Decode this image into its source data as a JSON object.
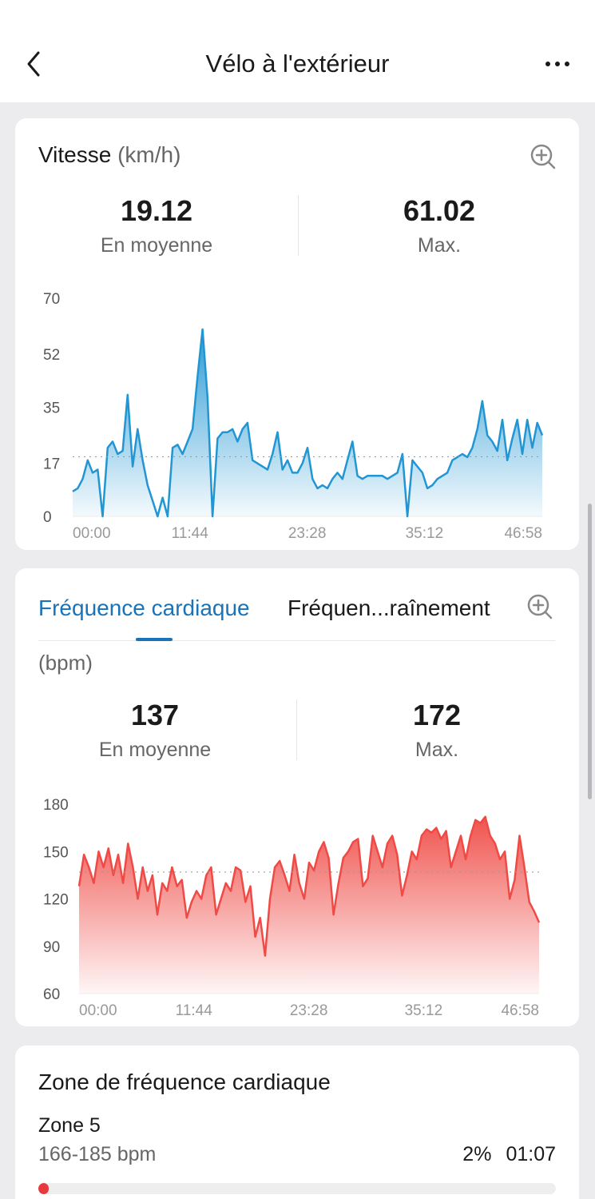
{
  "header": {
    "title": "Vélo à l'extérieur",
    "back_icon": "chevron-left-icon",
    "more_icon": "more-horizontal-icon"
  },
  "speed": {
    "title": "Vitesse",
    "unit": "(km/h)",
    "zoom_icon": "zoom-in-icon",
    "stats": [
      {
        "value": "19.12",
        "label": "En moyenne"
      },
      {
        "value": "61.02",
        "label": "Max."
      }
    ],
    "color": "#2196d3"
  },
  "heart_rate": {
    "tabs": [
      {
        "label": "Fréquence cardiaque",
        "active": true
      },
      {
        "label": "Fréquen...raînement",
        "active": false
      }
    ],
    "zoom_icon": "zoom-in-icon",
    "unit": "(bpm)",
    "stats": [
      {
        "value": "137",
        "label": "En moyenne"
      },
      {
        "value": "172",
        "label": "Max."
      }
    ],
    "color": "#ef4a45"
  },
  "zone": {
    "title": "Zone de fréquence cardiaque",
    "name": "Zone 5",
    "range": "166-185 bpm",
    "percent": "2%",
    "duration": "01:07",
    "fill_fraction": 0.02,
    "color": "#e8393c"
  },
  "chart_data": [
    {
      "type": "area",
      "yticks": [
        "70",
        "52",
        "35",
        "17",
        "0"
      ],
      "xticks": [
        "00:00",
        "11:44",
        "23:28",
        "35:12",
        "46:58"
      ],
      "ylim": [
        0,
        70
      ],
      "xlim": [
        0,
        47
      ],
      "average": 19.12,
      "x": [
        0,
        0.5,
        1,
        1.5,
        2,
        2.5,
        3,
        3.5,
        4,
        4.5,
        5,
        5.5,
        6,
        6.5,
        7,
        7.5,
        8,
        8.5,
        9,
        9.5,
        10,
        10.5,
        11,
        11.5,
        12,
        12.5,
        13,
        13.5,
        14,
        14.5,
        15,
        15.5,
        16,
        16.5,
        17,
        17.5,
        18,
        18.5,
        19,
        19.5,
        20,
        20.5,
        21,
        21.5,
        22,
        22.5,
        23,
        23.5,
        24,
        24.5,
        25,
        25.5,
        26,
        26.5,
        27,
        27.5,
        28,
        28.5,
        29,
        29.5,
        30,
        30.5,
        31,
        31.5,
        32,
        32.5,
        33,
        33.5,
        34,
        34.5,
        35,
        35.5,
        36,
        36.5,
        37,
        37.5,
        38,
        38.5,
        39,
        39.5,
        40,
        40.5,
        41,
        41.5,
        42,
        42.5,
        43,
        43.5,
        44,
        44.5,
        45,
        45.5,
        46,
        46.5,
        47
      ],
      "values": [
        8,
        9,
        12,
        18,
        14,
        15,
        0,
        22,
        24,
        20,
        21,
        39,
        16,
        28,
        18,
        10,
        5,
        0,
        6,
        0,
        22,
        23,
        20,
        24,
        28,
        45,
        60,
        38,
        0,
        25,
        27,
        27,
        28,
        24,
        28,
        30,
        18,
        17,
        16,
        15,
        20,
        27,
        15,
        18,
        14,
        14,
        17,
        22,
        12,
        9,
        10,
        9,
        12,
        14,
        12,
        18,
        24,
        13,
        12,
        13,
        13,
        13,
        13,
        12,
        13,
        14,
        20,
        0,
        18,
        16,
        14,
        9,
        10,
        12,
        13,
        14,
        18,
        19,
        20,
        19,
        22,
        28,
        37,
        26,
        24,
        21,
        31,
        18,
        25,
        31,
        20,
        31,
        22,
        30,
        26
      ]
    },
    {
      "type": "area",
      "yticks": [
        "180",
        "150",
        "120",
        "90",
        "60"
      ],
      "xticks": [
        "00:00",
        "11:44",
        "23:28",
        "35:12",
        "46:58"
      ],
      "ylim": [
        60,
        180
      ],
      "xlim": [
        0,
        47
      ],
      "average": 137,
      "x": [
        0,
        0.5,
        1,
        1.5,
        2,
        2.5,
        3,
        3.5,
        4,
        4.5,
        5,
        5.5,
        6,
        6.5,
        7,
        7.5,
        8,
        8.5,
        9,
        9.5,
        10,
        10.5,
        11,
        11.5,
        12,
        12.5,
        13,
        13.5,
        14,
        14.5,
        15,
        15.5,
        16,
        16.5,
        17,
        17.5,
        18,
        18.5,
        19,
        19.5,
        20,
        20.5,
        21,
        21.5,
        22,
        22.5,
        23,
        23.5,
        24,
        24.5,
        25,
        25.5,
        26,
        26.5,
        27,
        27.5,
        28,
        28.5,
        29,
        29.5,
        30,
        30.5,
        31,
        31.5,
        32,
        32.5,
        33,
        33.5,
        34,
        34.5,
        35,
        35.5,
        36,
        36.5,
        37,
        37.5,
        38,
        38.5,
        39,
        39.5,
        40,
        40.5,
        41,
        41.5,
        42,
        42.5,
        43,
        43.5,
        44,
        44.5,
        45,
        45.5,
        46,
        46.5,
        47
      ],
      "values": [
        128,
        148,
        140,
        130,
        150,
        140,
        152,
        135,
        148,
        130,
        155,
        140,
        120,
        140,
        125,
        135,
        110,
        130,
        125,
        140,
        128,
        132,
        108,
        118,
        125,
        120,
        135,
        140,
        110,
        120,
        130,
        125,
        140,
        138,
        118,
        128,
        96,
        108,
        84,
        120,
        140,
        144,
        135,
        125,
        148,
        130,
        120,
        143,
        138,
        150,
        156,
        146,
        110,
        130,
        146,
        150,
        156,
        158,
        128,
        133,
        160,
        150,
        140,
        155,
        160,
        148,
        122,
        135,
        150,
        145,
        160,
        164,
        162,
        165,
        158,
        163,
        140,
        150,
        160,
        145,
        160,
        170,
        168,
        172,
        160,
        155,
        145,
        150,
        120,
        132,
        160,
        140,
        118,
        112,
        105
      ]
    }
  ]
}
